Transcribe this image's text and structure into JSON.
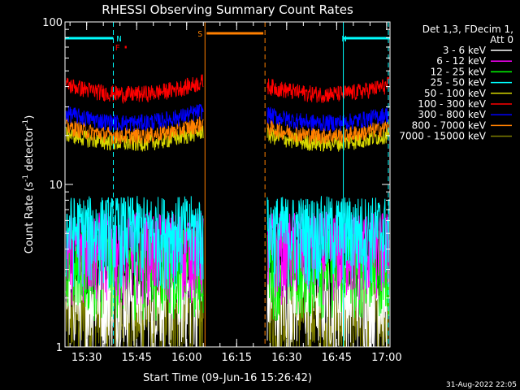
{
  "chart_data": {
    "type": "line",
    "title": "RHESSI Observing Summary Count Rates",
    "xlabel": "Start Time (09-Jun-16 15:26:42)",
    "ylabel": "Count Rate (s⁻¹ detector⁻¹)",
    "ylabel_main": "Count Rate (s",
    "ylabel_mid": " detector",
    "ylabel_end": ")",
    "ylabel_sup": "-1",
    "yscale": "log",
    "ylim": [
      1,
      100
    ],
    "xlim_minutes": [
      -6.5,
      91
    ],
    "x_tick_labels": [
      "15:30",
      "15:45",
      "16:00",
      "16:15",
      "16:30",
      "16:45",
      "17:00"
    ],
    "x_tick_minutes": [
      0,
      15,
      30,
      45,
      60,
      75,
      90
    ],
    "y_tick_labels": [
      "1",
      "10",
      "100"
    ],
    "y_tick_values": [
      1,
      10,
      100
    ],
    "legend_title_line1": "Det 1,3, FDecim 1,",
    "legend_title_line2": "Att 0",
    "legend_position": "right",
    "series": [
      {
        "name": "3 - 6 keV",
        "color": "#ffffff",
        "level": 2.0
      },
      {
        "name": "6 - 12 keV",
        "color": "#ff00ff",
        "level": 4.0
      },
      {
        "name": "12 - 25 keV",
        "color": "#00ff00",
        "level": 3.2
      },
      {
        "name": "25 - 50 keV",
        "color": "#00ffff",
        "level": 5.0
      },
      {
        "name": "50 - 100 keV",
        "color": "#d8d800",
        "level": 18.0
      },
      {
        "name": "100 - 300 keV",
        "color": "#ff0000",
        "level": 36.0
      },
      {
        "name": "300 - 800 keV",
        "color": "#0000ff",
        "level": 24.0
      },
      {
        "name": "800 - 7000 keV",
        "color": "#ff8000",
        "level": 20.0
      },
      {
        "name": "7000 - 15000 keV",
        "color": "#808000",
        "level": 1.5
      }
    ],
    "data_gap_minutes": [
      35.5,
      53.5
    ],
    "annotations": [
      {
        "label": "N",
        "color": "#00ffff",
        "start_minute": -6.5,
        "end_minute": 8
      },
      {
        "label": "N",
        "color": "#00ffff",
        "start_minute": 77,
        "end_minute": 91
      },
      {
        "label": "F",
        "color": "#ff0000",
        "start_minute": 9,
        "end_minute": 12
      },
      {
        "label": "S",
        "color": "#ff8000",
        "start_minute": 35.5,
        "end_minute": 53.5
      }
    ],
    "grid": false
  },
  "timestamp": "31-Aug-2022 22:05"
}
